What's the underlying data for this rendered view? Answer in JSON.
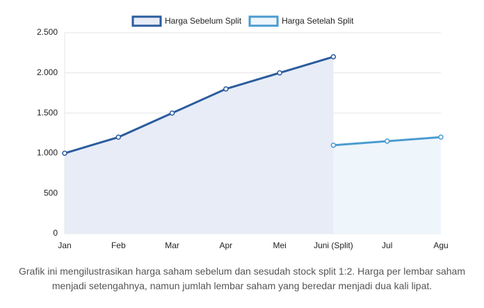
{
  "chart_data": {
    "type": "line",
    "categories": [
      "Jan",
      "Feb",
      "Mar",
      "Apr",
      "Mei",
      "Juni (Split)",
      "Jul",
      "Agu"
    ],
    "series": [
      {
        "name": "Harga Sebelum Split",
        "color": "#2b5c9e",
        "fill": "#e8ecf6",
        "values": [
          1000,
          1200,
          1500,
          1800,
          2000,
          2200,
          null,
          null
        ]
      },
      {
        "name": "Harga Setelah Split",
        "color": "#4a9bd0",
        "fill": "#eef5fb",
        "values": [
          null,
          null,
          null,
          null,
          null,
          1100,
          1150,
          1200
        ]
      }
    ],
    "ylim": [
      0,
      2500
    ],
    "yticks": [
      0,
      500,
      {
        "value": 1000,
        "label": "1.000"
      },
      {
        "value": 1500,
        "label": "1.500"
      },
      {
        "value": 2000,
        "label": "2.000"
      },
      {
        "value": 2500,
        "label": "2.500"
      }
    ],
    "grid": true,
    "legend": "top",
    "caption": "Grafik ini mengilustrasikan harga saham sebelum dan sesudah stock split 1:2. Harga per lembar saham menjadi setengahnya, namun jumlah lembar saham yang beredar menjadi dua kali lipat."
  }
}
